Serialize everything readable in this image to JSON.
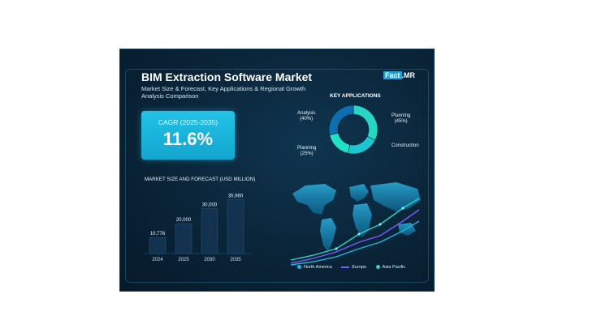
{
  "header": {
    "title": "BIM Extraction Software Market",
    "subtitle": "Market Size & Forecast, Key Applications & Regional Growth Analysis Comparison",
    "logo_fact": "Fact",
    "logo_mr": ".MR"
  },
  "cagr": {
    "label": "CAGR (2025-2035)",
    "value": "11.6%"
  },
  "colors": {
    "accent": "#1fb8de",
    "bar": "#12324f",
    "donut_dark": "#0c6fb0",
    "donut_light": "#22c8d8",
    "north_america": "#1fb8de",
    "europe": "#7b5cff",
    "asia_pacific": "#27d6c4"
  },
  "chart_data": [
    {
      "type": "bar",
      "title": "MARKET SIZE AND FORECAST (USD MILLION)",
      "categories": [
        "2024",
        "2025",
        "2030",
        "2035"
      ],
      "values": [
        10776,
        20000,
        30000,
        35960
      ],
      "value_labels": [
        "10,776",
        "20,000",
        "30,000",
        "35,960"
      ],
      "ylim": [
        0,
        40000
      ]
    },
    {
      "type": "pie",
      "title": "KEY APPLICATIONS",
      "slices": [
        {
          "label": "Planning",
          "percent_label": "(45%)",
          "value": 45
        },
        {
          "label": "Construction",
          "percent_label": "",
          "value": 30
        },
        {
          "label": "Planning",
          "percent_label": "(25%)",
          "value": 25
        },
        {
          "label": "Analysis",
          "percent_label": "(40%)",
          "value": 40
        }
      ]
    }
  ],
  "map_legend": [
    {
      "name": "North America",
      "icon": "dot",
      "color": "#1fb8de"
    },
    {
      "name": "Europe",
      "icon": "line",
      "color": "#7b5cff"
    },
    {
      "name": "Asia Pacific",
      "icon": "dot",
      "color": "#27d6c4"
    }
  ]
}
